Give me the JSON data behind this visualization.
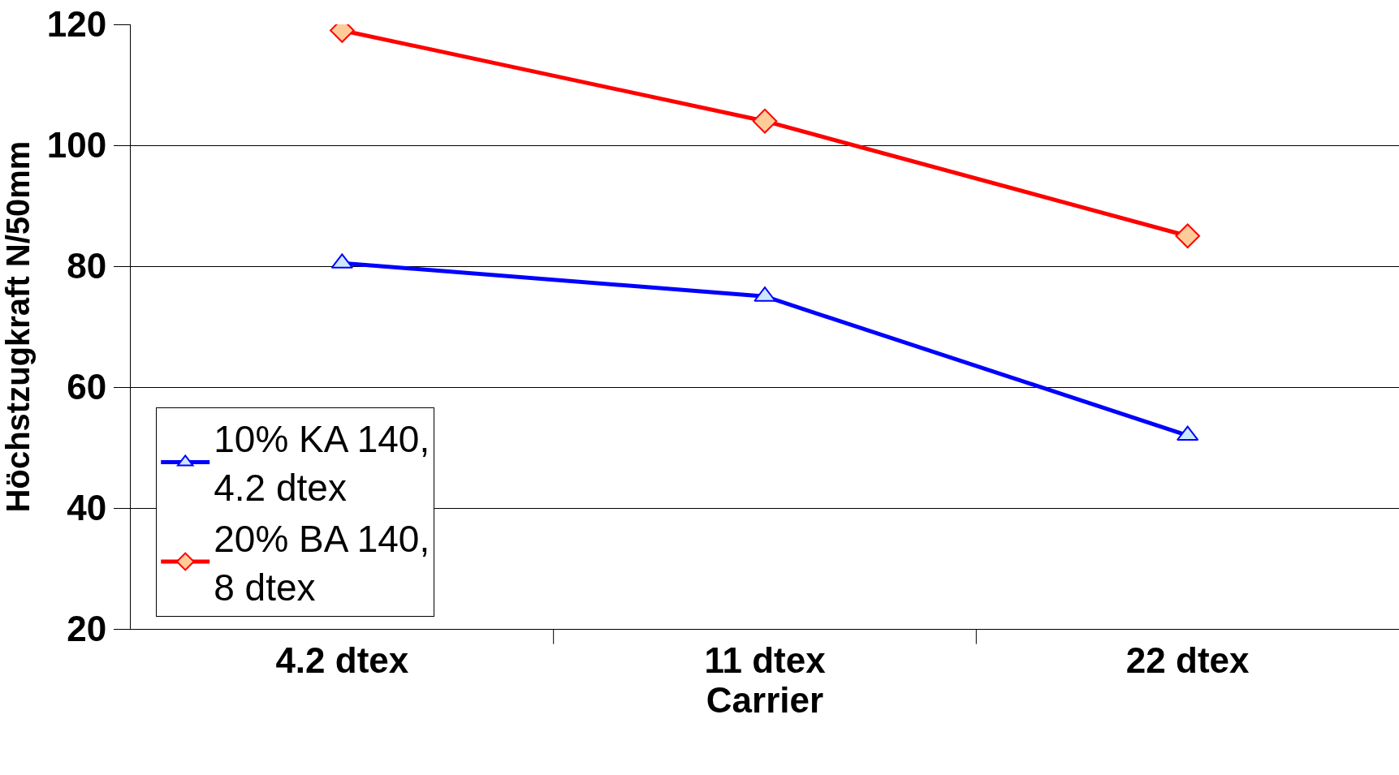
{
  "chart_data": {
    "type": "line",
    "xlabel": "Carrier",
    "ylabel": "Höchstzugkraft N/50mm",
    "categories": [
      "4.2 dtex",
      "11 dtex",
      "22 dtex"
    ],
    "series": [
      {
        "name": "10% KA 140,\n4.2 dtex",
        "color": "#0000ff",
        "marker": "triangle",
        "values": [
          80.5,
          75,
          52
        ]
      },
      {
        "name": "20% BA 140,\n8 dtex",
        "color": "#ff0000",
        "marker": "diamond",
        "values": [
          119,
          104,
          85
        ]
      }
    ],
    "ylim": [
      20,
      120
    ],
    "yticks": [
      20,
      40,
      60,
      80,
      100,
      120
    ],
    "grid": "y",
    "legend": "bottom left",
    "line_style": "solid"
  }
}
